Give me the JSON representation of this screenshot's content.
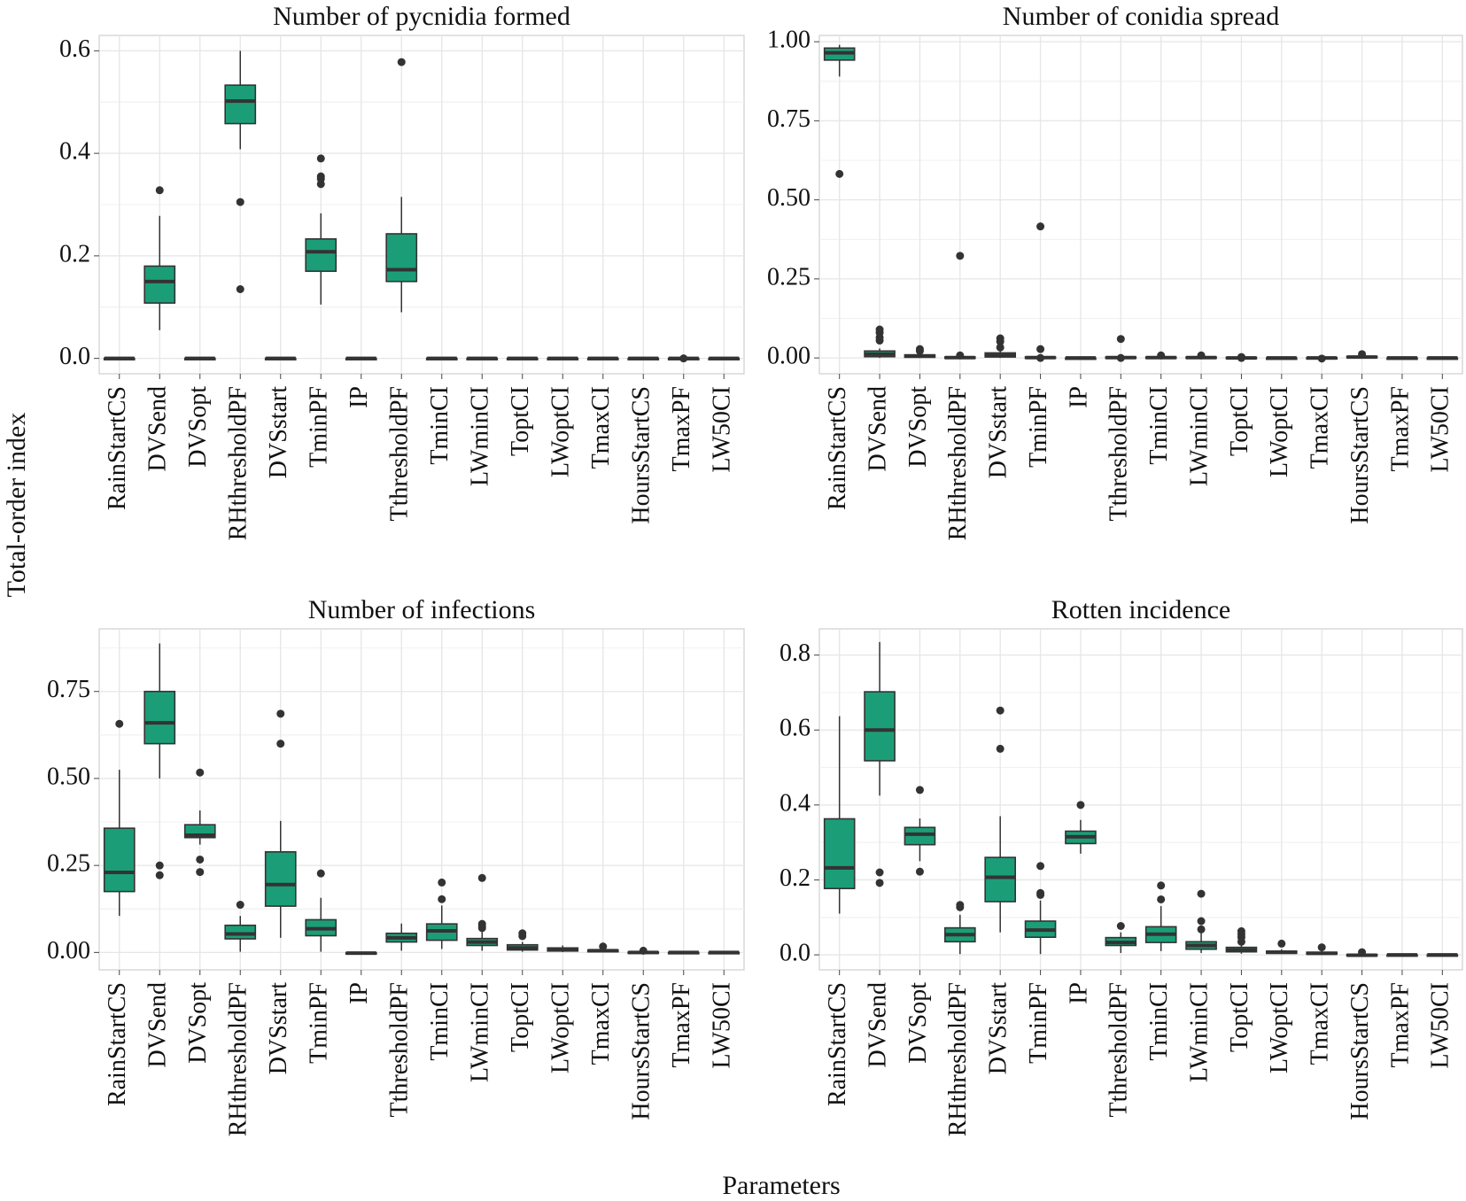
{
  "chart_data": {
    "type": "box",
    "ylabel": "Total-order index",
    "xlabel": "Parameters",
    "fill_color": "#1b9e77",
    "outline_color": "#333333",
    "categories": [
      "RainStartCS",
      "DVSend",
      "DVSopt",
      "RHthresholdPF",
      "DVSstart",
      "TminPF",
      "IP",
      "TthresholdPF",
      "TminCI",
      "LWminCI",
      "ToptCI",
      "LWoptCI",
      "TmaxCI",
      "HoursStartCS",
      "TmaxPF",
      "LW50CI"
    ],
    "panels": [
      {
        "title": "Number of pycnidia formed",
        "ylim": [
          -0.03,
          0.63
        ],
        "yticks": [
          0.0,
          0.2,
          0.4,
          0.6
        ],
        "ytick_labels": [
          "0.0",
          "0.2",
          "0.4",
          "0.6"
        ],
        "grid": true,
        "boxes": [
          {
            "min": 0,
            "q1": 0,
            "median": 0,
            "q3": 0,
            "max": 0,
            "outliers": []
          },
          {
            "min": 0.055,
            "q1": 0.108,
            "median": 0.15,
            "q3": 0.18,
            "max": 0.278,
            "outliers": [
              0.328
            ]
          },
          {
            "min": 0,
            "q1": 0,
            "median": 0,
            "q3": 0,
            "max": 0,
            "outliers": []
          },
          {
            "min": 0.408,
            "q1": 0.458,
            "median": 0.502,
            "q3": 0.533,
            "max": 0.6,
            "outliers": [
              0.305,
              0.135
            ]
          },
          {
            "min": 0,
            "q1": 0,
            "median": 0,
            "q3": 0,
            "max": 0,
            "outliers": []
          },
          {
            "min": 0.105,
            "q1": 0.17,
            "median": 0.208,
            "q3": 0.233,
            "max": 0.283,
            "outliers": [
              0.39,
              0.355,
              0.35,
              0.34
            ]
          },
          {
            "min": 0,
            "q1": 0,
            "median": 0,
            "q3": 0,
            "max": 0,
            "outliers": []
          },
          {
            "min": 0.09,
            "q1": 0.15,
            "median": 0.173,
            "q3": 0.243,
            "max": 0.315,
            "outliers": [
              0.578
            ]
          },
          {
            "min": 0,
            "q1": 0,
            "median": 0,
            "q3": 0,
            "max": 0,
            "outliers": []
          },
          {
            "min": 0,
            "q1": 0,
            "median": 0,
            "q3": 0,
            "max": 0,
            "outliers": []
          },
          {
            "min": 0,
            "q1": 0,
            "median": 0,
            "q3": 0,
            "max": 0,
            "outliers": []
          },
          {
            "min": 0,
            "q1": 0,
            "median": 0,
            "q3": 0,
            "max": 0,
            "outliers": []
          },
          {
            "min": 0,
            "q1": 0,
            "median": 0,
            "q3": 0,
            "max": 0,
            "outliers": []
          },
          {
            "min": 0,
            "q1": 0,
            "median": 0,
            "q3": 0,
            "max": 0,
            "outliers": []
          },
          {
            "min": 0,
            "q1": 0,
            "median": 0,
            "q3": 0,
            "max": 0,
            "outliers": [
              0.0
            ]
          },
          {
            "min": 0,
            "q1": 0,
            "median": 0,
            "q3": 0,
            "max": 0,
            "outliers": []
          }
        ]
      },
      {
        "title": "Number of conidia spread",
        "ylim": [
          -0.05,
          1.02
        ],
        "yticks": [
          0.0,
          0.25,
          0.5,
          0.75,
          1.0
        ],
        "ytick_labels": [
          "0.00",
          "0.25",
          "0.50",
          "0.75",
          "1.00"
        ],
        "grid": true,
        "boxes": [
          {
            "min": 0.89,
            "q1": 0.942,
            "median": 0.965,
            "q3": 0.98,
            "max": 0.99,
            "outliers": [
              0.582
            ]
          },
          {
            "min": 0,
            "q1": 0.004,
            "median": 0.012,
            "q3": 0.022,
            "max": 0.03,
            "outliers": [
              0.09,
              0.08,
              0.065,
              0.055
            ]
          },
          {
            "min": 0,
            "q1": 0.002,
            "median": 0.006,
            "q3": 0.01,
            "max": 0.015,
            "outliers": [
              0.028,
              0.022
            ]
          },
          {
            "min": 0,
            "q1": 0,
            "median": 0.001,
            "q3": 0.003,
            "max": 0.005,
            "outliers": [
              0.323,
              0.008
            ]
          },
          {
            "min": 0,
            "q1": 0.003,
            "median": 0.008,
            "q3": 0.016,
            "max": 0.025,
            "outliers": [
              0.062,
              0.052,
              0.033
            ]
          },
          {
            "min": 0,
            "q1": 0,
            "median": 0.001,
            "q3": 0.003,
            "max": 0.005,
            "outliers": [
              0.416,
              0.028,
              0.0
            ]
          },
          {
            "min": 0,
            "q1": 0,
            "median": 0,
            "q3": 0,
            "max": 0,
            "outliers": []
          },
          {
            "min": 0,
            "q1": 0,
            "median": 0.001,
            "q3": 0.003,
            "max": 0.004,
            "outliers": [
              0.06,
              0.0
            ]
          },
          {
            "min": 0,
            "q1": 0,
            "median": 0.001,
            "q3": 0.003,
            "max": 0.004,
            "outliers": [
              0.008
            ]
          },
          {
            "min": 0,
            "q1": 0,
            "median": 0.001,
            "q3": 0.003,
            "max": 0.004,
            "outliers": [
              0.008
            ]
          },
          {
            "min": 0,
            "q1": 0,
            "median": 0,
            "q3": 0.002,
            "max": 0.003,
            "outliers": [
              0.003,
              0.0
            ]
          },
          {
            "min": 0,
            "q1": 0,
            "median": 0,
            "q3": 0,
            "max": 0,
            "outliers": []
          },
          {
            "min": 0,
            "q1": 0,
            "median": 0,
            "q3": 0.001,
            "max": 0.002,
            "outliers": [
              -0.002
            ]
          },
          {
            "min": 0,
            "q1": 0.001,
            "median": 0.003,
            "q3": 0.005,
            "max": 0.007,
            "outliers": [
              0.012
            ]
          },
          {
            "min": 0,
            "q1": 0,
            "median": 0,
            "q3": 0,
            "max": 0,
            "outliers": []
          },
          {
            "min": 0,
            "q1": 0,
            "median": 0,
            "q3": 0,
            "max": 0,
            "outliers": []
          }
        ]
      },
      {
        "title": "Number of infections",
        "ylim": [
          -0.05,
          0.93
        ],
        "yticks": [
          0.0,
          0.25,
          0.5,
          0.75
        ],
        "ytick_labels": [
          "0.00",
          "0.25",
          "0.50",
          "0.75"
        ],
        "grid": true,
        "boxes": [
          {
            "min": 0.105,
            "q1": 0.175,
            "median": 0.23,
            "q3": 0.357,
            "max": 0.525,
            "outliers": [
              0.657
            ]
          },
          {
            "min": 0.5,
            "q1": 0.6,
            "median": 0.66,
            "q3": 0.75,
            "max": 0.888,
            "outliers": [
              0.25,
              0.222
            ]
          },
          {
            "min": 0.31,
            "q1": 0.33,
            "median": 0.337,
            "q3": 0.367,
            "max": 0.408,
            "outliers": [
              0.517,
              0.267,
              0.231
            ]
          },
          {
            "min": 0.002,
            "q1": 0.039,
            "median": 0.053,
            "q3": 0.078,
            "max": 0.105,
            "outliers": [
              0.137
            ]
          },
          {
            "min": 0.042,
            "q1": 0.133,
            "median": 0.195,
            "q3": 0.289,
            "max": 0.378,
            "outliers": [
              0.686,
              0.6
            ]
          },
          {
            "min": 0.002,
            "q1": 0.048,
            "median": 0.068,
            "q3": 0.094,
            "max": 0.157,
            "outliers": [
              0.227
            ]
          },
          {
            "min": -0.002,
            "q1": -0.002,
            "median": -0.002,
            "q3": -0.001,
            "max": -0.001,
            "outliers": []
          },
          {
            "min": 0.005,
            "q1": 0.03,
            "median": 0.042,
            "q3": 0.055,
            "max": 0.083,
            "outliers": []
          },
          {
            "min": 0.01,
            "q1": 0.035,
            "median": 0.062,
            "q3": 0.082,
            "max": 0.135,
            "outliers": [
              0.201,
              0.153
            ]
          },
          {
            "min": 0.005,
            "q1": 0.02,
            "median": 0.03,
            "q3": 0.04,
            "max": 0.06,
            "outliers": [
              0.214,
              0.082,
              0.075,
              0.07
            ]
          },
          {
            "min": 0.002,
            "q1": 0.007,
            "median": 0.013,
            "q3": 0.022,
            "max": 0.03,
            "outliers": [
              0.055,
              0.047
            ]
          },
          {
            "min": 0.001,
            "q1": 0.004,
            "median": 0.008,
            "q3": 0.013,
            "max": 0.02,
            "outliers": []
          },
          {
            "min": 0,
            "q1": 0.002,
            "median": 0.005,
            "q3": 0.007,
            "max": 0.01,
            "outliers": [
              0.017
            ]
          },
          {
            "min": -0.002,
            "q1": -0.001,
            "median": 0,
            "q3": 0.001,
            "max": 0.002,
            "outliers": [
              0.005
            ]
          },
          {
            "min": 0,
            "q1": 0,
            "median": 0,
            "q3": 0,
            "max": 0,
            "outliers": []
          },
          {
            "min": 0,
            "q1": 0,
            "median": 0,
            "q3": 0,
            "max": 0,
            "outliers": []
          }
        ]
      },
      {
        "title": "Rotten incidence",
        "ylim": [
          -0.04,
          0.87
        ],
        "yticks": [
          0.0,
          0.2,
          0.4,
          0.6,
          0.8
        ],
        "ytick_labels": [
          "0.0",
          "0.2",
          "0.4",
          "0.6",
          "0.8"
        ],
        "grid": true,
        "boxes": [
          {
            "min": 0.11,
            "q1": 0.177,
            "median": 0.232,
            "q3": 0.363,
            "max": 0.637,
            "outliers": []
          },
          {
            "min": 0.425,
            "q1": 0.518,
            "median": 0.6,
            "q3": 0.702,
            "max": 0.835,
            "outliers": [
              0.22,
              0.192
            ]
          },
          {
            "min": 0.25,
            "q1": 0.294,
            "median": 0.322,
            "q3": 0.34,
            "max": 0.364,
            "outliers": [
              0.44,
              0.222
            ]
          },
          {
            "min": 0.002,
            "q1": 0.035,
            "median": 0.054,
            "q3": 0.072,
            "max": 0.107,
            "outliers": [
              0.133,
              0.127
            ]
          },
          {
            "min": 0.06,
            "q1": 0.142,
            "median": 0.207,
            "q3": 0.26,
            "max": 0.37,
            "outliers": [
              0.652,
              0.55
            ]
          },
          {
            "min": 0.002,
            "q1": 0.047,
            "median": 0.066,
            "q3": 0.09,
            "max": 0.145,
            "outliers": [
              0.237,
              0.165,
              0.16
            ]
          },
          {
            "min": 0.27,
            "q1": 0.297,
            "median": 0.315,
            "q3": 0.33,
            "max": 0.36,
            "outliers": [
              0.4
            ]
          },
          {
            "min": 0.005,
            "q1": 0.025,
            "median": 0.033,
            "q3": 0.046,
            "max": 0.06,
            "outliers": [
              0.077
            ]
          },
          {
            "min": 0.01,
            "q1": 0.033,
            "median": 0.055,
            "q3": 0.075,
            "max": 0.13,
            "outliers": [
              0.185,
              0.148
            ]
          },
          {
            "min": 0.005,
            "q1": 0.015,
            "median": 0.025,
            "q3": 0.035,
            "max": 0.058,
            "outliers": [
              0.163,
              0.09,
              0.068
            ]
          },
          {
            "min": 0.003,
            "q1": 0.008,
            "median": 0.013,
            "q3": 0.02,
            "max": 0.03,
            "outliers": [
              0.063,
              0.055,
              0.047,
              0.035
            ]
          },
          {
            "min": 0.002,
            "q1": 0.004,
            "median": 0.007,
            "q3": 0.01,
            "max": 0.015,
            "outliers": [
              0.03
            ]
          },
          {
            "min": 0.001,
            "q1": 0.002,
            "median": 0.004,
            "q3": 0.007,
            "max": 0.01,
            "outliers": [
              0.02
            ]
          },
          {
            "min": -0.005,
            "q1": -0.003,
            "median": -0.001,
            "q3": 0.001,
            "max": 0.003,
            "outliers": [
              0.007
            ]
          },
          {
            "min": 0,
            "q1": 0,
            "median": 0,
            "q3": 0,
            "max": 0,
            "outliers": []
          },
          {
            "min": 0,
            "q1": 0,
            "median": 0,
            "q3": 0,
            "max": 0,
            "outliers": []
          }
        ]
      }
    ]
  }
}
